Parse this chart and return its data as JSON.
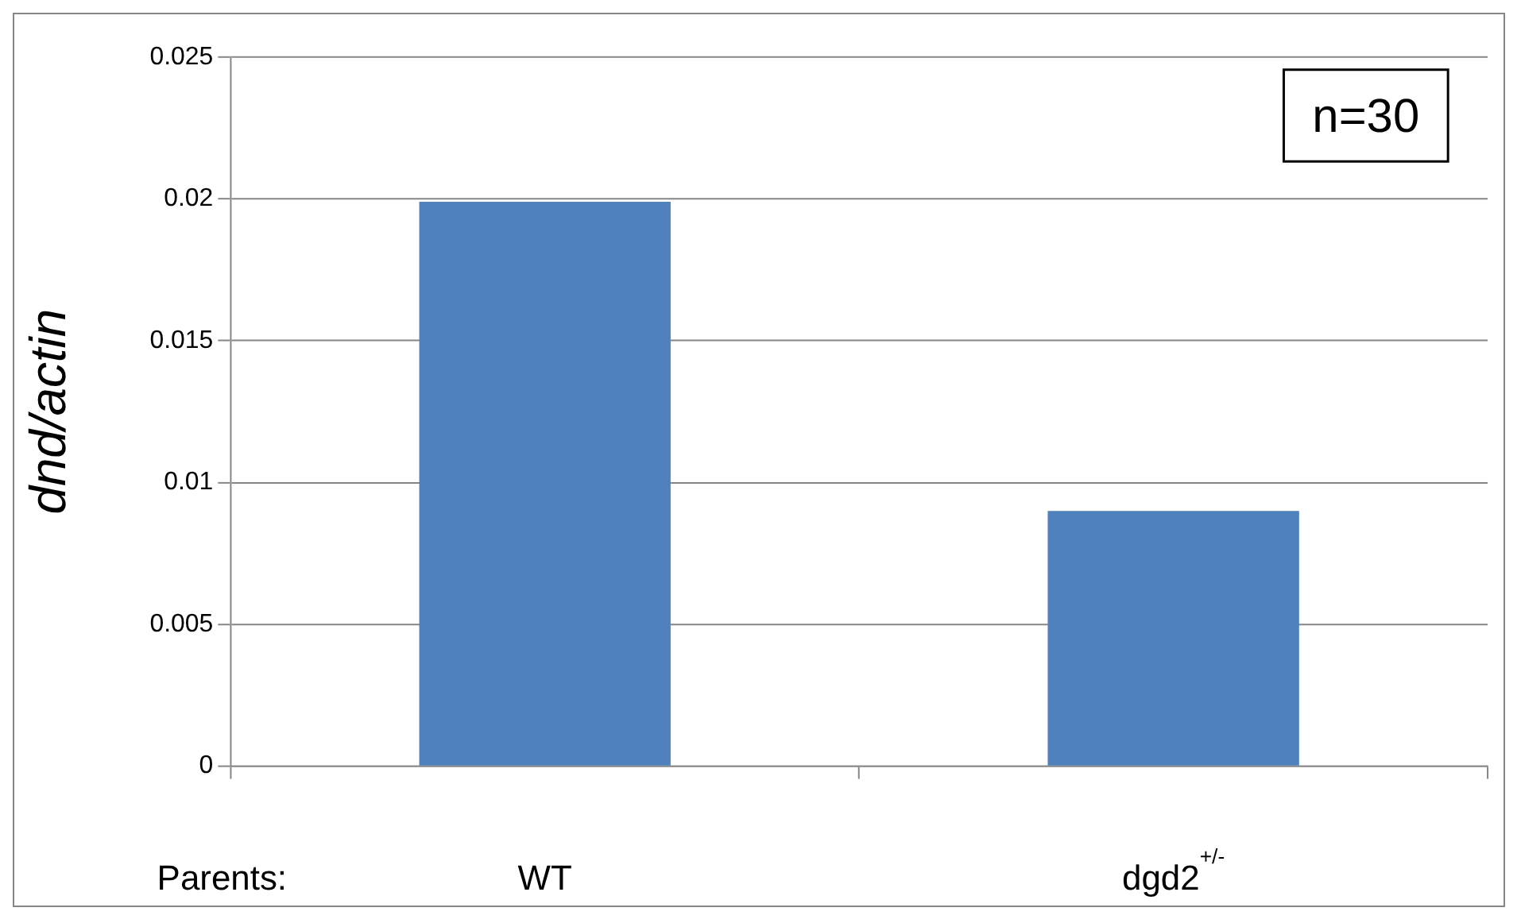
{
  "chart_data": {
    "type": "bar",
    "ylabel": "dnd/actin",
    "categories": [
      "WT",
      "dgd2$^{+/-}$"
    ],
    "values": [
      0.0199,
      0.009
    ],
    "color": "#4f81bd",
    "ylim": [
      0,
      0.025
    ],
    "yticks": [
      0,
      0.005,
      0.01,
      0.015,
      0.02,
      0.025
    ],
    "grid": "y",
    "legend": false,
    "annotations": [
      "Parents:",
      "n=30"
    ]
  }
}
